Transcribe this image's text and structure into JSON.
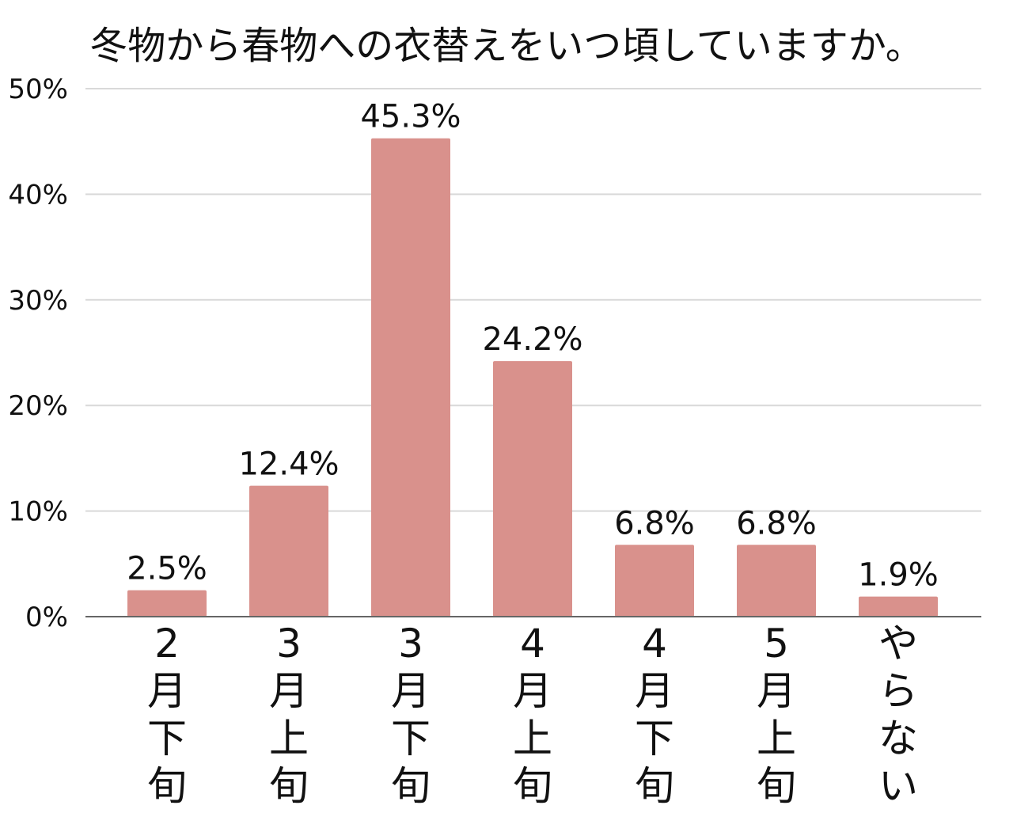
{
  "chart_data": {
    "type": "bar",
    "title": "冬物から春物への衣替えをいつ頃していますか。",
    "categories": [
      "2月下旬",
      "3月上旬",
      "3月下旬",
      "4月上旬",
      "4月下旬",
      "5月上旬",
      "やらない"
    ],
    "values": [
      2.5,
      12.4,
      45.3,
      24.2,
      6.8,
      6.8,
      1.9
    ],
    "data_labels": [
      "2.5%",
      "12.4%",
      "45.3%",
      "24.2%",
      "6.8%",
      "6.8%",
      "1.9%"
    ],
    "y_ticks": [
      0,
      10,
      20,
      30,
      40,
      50
    ],
    "y_tick_labels": [
      "0%",
      "10%",
      "20%",
      "30%",
      "40%",
      "50%"
    ],
    "ylim": [
      0,
      50
    ],
    "grid": true,
    "bar_color": "#d9918c",
    "grid_color": "#d9d9d9",
    "axis_color": "#666666"
  }
}
